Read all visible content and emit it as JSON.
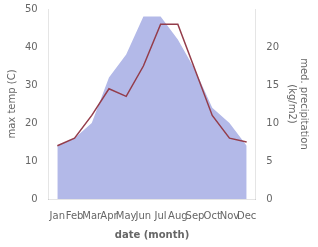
{
  "chart_data": {
    "type": "line",
    "categories": [
      "Jan",
      "Feb",
      "Mar",
      "Apr",
      "May",
      "Jun",
      "Jul",
      "Aug",
      "Sep",
      "Oct",
      "Nov",
      "Dec"
    ],
    "xlabel": "date (month)",
    "ylabel": "max temp (C)",
    "y2label": "med. precipitation\n(kg/m2)",
    "series": [
      {
        "type": "area",
        "axis": "y2",
        "color": "#b3b9e8",
        "values": [
          7,
          8,
          10,
          16,
          19,
          24,
          24,
          21,
          17,
          12,
          10,
          7
        ]
      },
      {
        "type": "line",
        "color": "#943d4b",
        "values": [
          14,
          16,
          22,
          29,
          27,
          35,
          46,
          46,
          34,
          22,
          16,
          15
        ]
      }
    ],
    "ylim": [
      0,
      50
    ],
    "yticks": [
      0,
      10,
      20,
      30,
      40,
      50
    ],
    "y2lim": [
      0,
      25
    ],
    "y2ticks": [
      0,
      5,
      10,
      15,
      20
    ],
    "grid": false
  }
}
